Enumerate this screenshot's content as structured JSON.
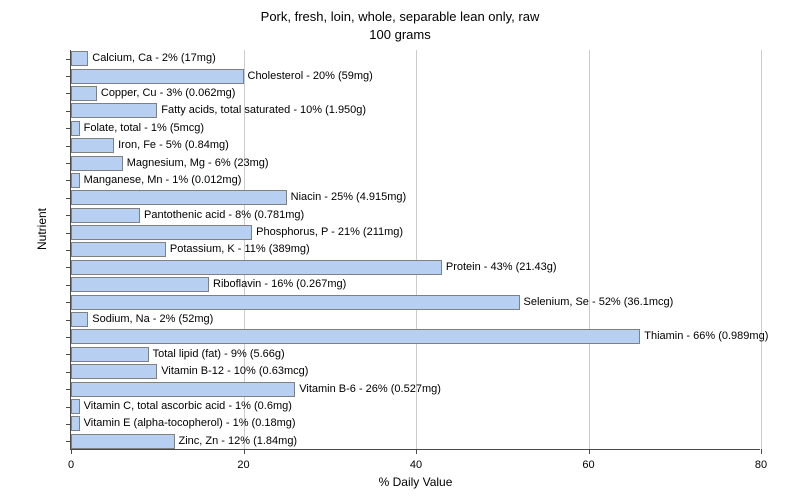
{
  "chart": {
    "type": "bar",
    "title_line1": "Pork, fresh, loin, whole, separable lean only, raw",
    "title_line2": "100 grams",
    "title_fontsize": 13,
    "x_axis_label": "% Daily Value",
    "y_axis_label": "Nutrient",
    "xlim": [
      0,
      80
    ],
    "xtick_step": 20,
    "xticks": [
      0,
      20,
      40,
      60,
      80
    ],
    "bar_color": "#b7cff1",
    "bar_border_color": "#808080",
    "grid_color": "#cccccc",
    "axis_color": "#4a4a4a",
    "background_color": "#f5f5f5",
    "plot_background": "#ffffff",
    "label_fontsize": 11,
    "axis_label_fontsize": 12,
    "bars": [
      {
        "label": "Calcium, Ca - 2% (17mg)",
        "value": 2
      },
      {
        "label": "Cholesterol - 20% (59mg)",
        "value": 20
      },
      {
        "label": "Copper, Cu - 3% (0.062mg)",
        "value": 3
      },
      {
        "label": "Fatty acids, total saturated - 10% (1.950g)",
        "value": 10
      },
      {
        "label": "Folate, total - 1% (5mcg)",
        "value": 1
      },
      {
        "label": "Iron, Fe - 5% (0.84mg)",
        "value": 5
      },
      {
        "label": "Magnesium, Mg - 6% (23mg)",
        "value": 6
      },
      {
        "label": "Manganese, Mn - 1% (0.012mg)",
        "value": 1
      },
      {
        "label": "Niacin - 25% (4.915mg)",
        "value": 25
      },
      {
        "label": "Pantothenic acid - 8% (0.781mg)",
        "value": 8
      },
      {
        "label": "Phosphorus, P - 21% (211mg)",
        "value": 21
      },
      {
        "label": "Potassium, K - 11% (389mg)",
        "value": 11
      },
      {
        "label": "Protein - 43% (21.43g)",
        "value": 43
      },
      {
        "label": "Riboflavin - 16% (0.267mg)",
        "value": 16
      },
      {
        "label": "Selenium, Se - 52% (36.1mcg)",
        "value": 52
      },
      {
        "label": "Sodium, Na - 2% (52mg)",
        "value": 2
      },
      {
        "label": "Thiamin - 66% (0.989mg)",
        "value": 66
      },
      {
        "label": "Total lipid (fat) - 9% (5.66g)",
        "value": 9
      },
      {
        "label": "Vitamin B-12 - 10% (0.63mcg)",
        "value": 10
      },
      {
        "label": "Vitamin B-6 - 26% (0.527mg)",
        "value": 26
      },
      {
        "label": "Vitamin C, total ascorbic acid - 1% (0.6mg)",
        "value": 1
      },
      {
        "label": "Vitamin E (alpha-tocopherol) - 1% (0.18mg)",
        "value": 1
      },
      {
        "label": "Zinc, Zn - 12% (1.84mg)",
        "value": 12
      }
    ]
  }
}
